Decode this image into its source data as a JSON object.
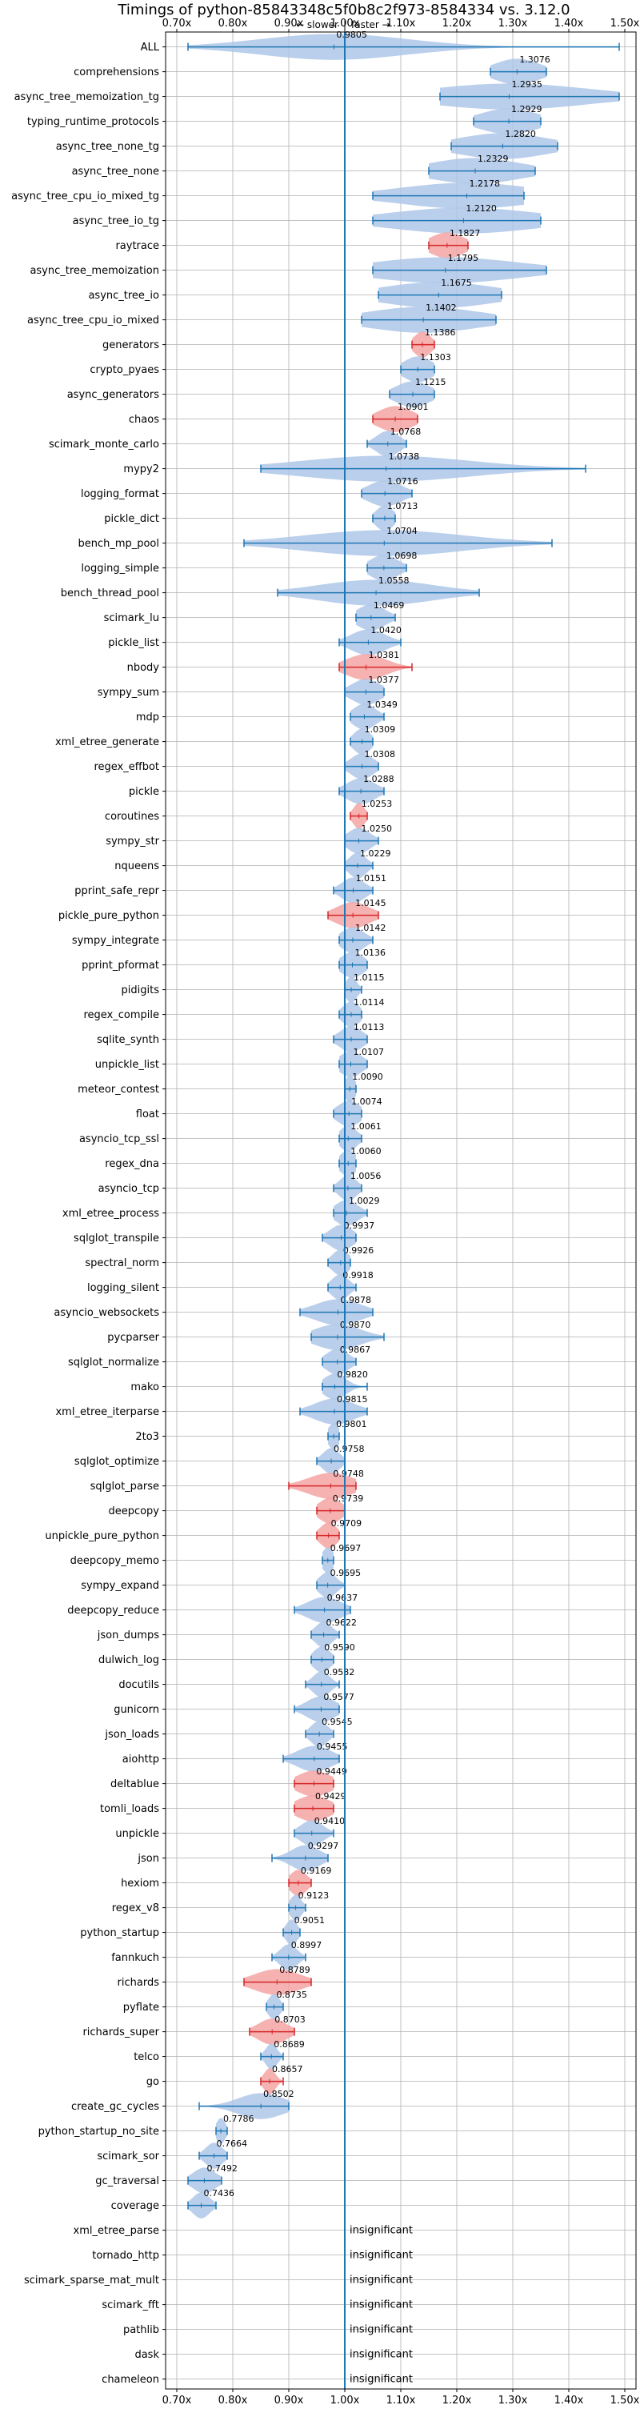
{
  "chart_data": {
    "type": "violin",
    "title": "Timings of python-85843348c5f0b8c2f973-8584334 vs. 3.12.0",
    "direction_labels": {
      "slower": "← slower",
      "separator": "|",
      "faster": "faster →"
    },
    "xlim": [
      0.68,
      1.52
    ],
    "xticks": [
      0.7,
      0.8,
      0.9,
      1.0,
      1.1,
      1.2,
      1.3,
      1.4,
      1.5
    ],
    "xtick_labels": [
      "0.70x",
      "0.80x",
      "0.90x",
      "1.00x",
      "1.10x",
      "1.20x",
      "1.30x",
      "1.40x",
      "1.50x"
    ],
    "grid": true,
    "reference_line": 1.0,
    "colors": {
      "normal": "#1f77b4",
      "normal_fill": "#aec7e8",
      "highlight_fill": "#f4a3a3",
      "highlight_line": "#d62728"
    },
    "benchmarks": [
      {
        "name": "ALL",
        "label": "0.9805",
        "center": 0.9805,
        "min": 0.72,
        "max": 1.49,
        "highlight": false,
        "spread": 0.13
      },
      {
        "name": "comprehensions",
        "label": "1.3076",
        "center": 1.3076,
        "min": 1.26,
        "max": 1.36,
        "highlight": false,
        "spread": 0.04
      },
      {
        "name": "async_tree_memoization_tg",
        "label": "1.2935",
        "center": 1.2935,
        "min": 1.17,
        "max": 1.49,
        "highlight": false,
        "spread": 0.14
      },
      {
        "name": "typing_runtime_protocols",
        "label": "1.2929",
        "center": 1.2929,
        "min": 1.23,
        "max": 1.35,
        "highlight": false,
        "spread": 0.05
      },
      {
        "name": "async_tree_none_tg",
        "label": "1.2820",
        "center": 1.282,
        "min": 1.19,
        "max": 1.38,
        "highlight": false,
        "spread": 0.08
      },
      {
        "name": "async_tree_none",
        "label": "1.2329",
        "center": 1.2329,
        "min": 1.15,
        "max": 1.34,
        "highlight": false,
        "spread": 0.08
      },
      {
        "name": "async_tree_cpu_io_mixed_tg",
        "label": "1.2178",
        "center": 1.2178,
        "min": 1.05,
        "max": 1.32,
        "highlight": false,
        "spread": 0.12
      },
      {
        "name": "async_tree_io_tg",
        "label": "1.2120",
        "center": 1.212,
        "min": 1.05,
        "max": 1.35,
        "highlight": false,
        "spread": 0.13
      },
      {
        "name": "raytrace",
        "label": "1.1827",
        "center": 1.1827,
        "min": 1.15,
        "max": 1.22,
        "highlight": true,
        "spread": 0.03
      },
      {
        "name": "async_tree_memoization",
        "label": "1.1795",
        "center": 1.1795,
        "min": 1.05,
        "max": 1.36,
        "highlight": false,
        "spread": 0.13
      },
      {
        "name": "async_tree_io",
        "label": "1.1675",
        "center": 1.1675,
        "min": 1.06,
        "max": 1.28,
        "highlight": false,
        "spread": 0.1
      },
      {
        "name": "async_tree_cpu_io_mixed",
        "label": "1.1402",
        "center": 1.1402,
        "min": 1.03,
        "max": 1.27,
        "highlight": false,
        "spread": 0.1
      },
      {
        "name": "generators",
        "label": "1.1386",
        "center": 1.1386,
        "min": 1.12,
        "max": 1.16,
        "highlight": true,
        "spread": 0.015
      },
      {
        "name": "crypto_pyaes",
        "label": "1.1303",
        "center": 1.1303,
        "min": 1.1,
        "max": 1.16,
        "highlight": false,
        "spread": 0.025
      },
      {
        "name": "async_generators",
        "label": "1.1215",
        "center": 1.1215,
        "min": 1.08,
        "max": 1.16,
        "highlight": false,
        "spread": 0.03
      },
      {
        "name": "chaos",
        "label": "1.0901",
        "center": 1.0901,
        "min": 1.05,
        "max": 1.13,
        "highlight": true,
        "spread": 0.03
      },
      {
        "name": "scimark_monte_carlo",
        "label": "1.0768",
        "center": 1.0768,
        "min": 1.04,
        "max": 1.11,
        "highlight": false,
        "spread": 0.02
      },
      {
        "name": "mypy2",
        "label": "1.0738",
        "center": 1.0738,
        "min": 0.85,
        "max": 1.43,
        "highlight": false,
        "spread": 0.15
      },
      {
        "name": "logging_format",
        "label": "1.0716",
        "center": 1.0716,
        "min": 1.03,
        "max": 1.12,
        "highlight": false,
        "spread": 0.03
      },
      {
        "name": "pickle_dict",
        "label": "1.0713",
        "center": 1.0713,
        "min": 1.05,
        "max": 1.09,
        "highlight": false,
        "spread": 0.015
      },
      {
        "name": "bench_mp_pool",
        "label": "1.0704",
        "center": 1.0704,
        "min": 0.82,
        "max": 1.37,
        "highlight": false,
        "spread": 0.14
      },
      {
        "name": "logging_simple",
        "label": "1.0698",
        "center": 1.0698,
        "min": 1.04,
        "max": 1.11,
        "highlight": false,
        "spread": 0.025
      },
      {
        "name": "bench_thread_pool",
        "label": "1.0558",
        "center": 1.0558,
        "min": 0.88,
        "max": 1.24,
        "highlight": false,
        "spread": 0.1
      },
      {
        "name": "scimark_lu",
        "label": "1.0469",
        "center": 1.0469,
        "min": 1.02,
        "max": 1.09,
        "highlight": false,
        "spread": 0.025
      },
      {
        "name": "pickle_list",
        "label": "1.0420",
        "center": 1.042,
        "min": 0.99,
        "max": 1.1,
        "highlight": false,
        "spread": 0.03
      },
      {
        "name": "nbody",
        "label": "1.0381",
        "center": 1.0381,
        "min": 0.99,
        "max": 1.12,
        "highlight": true,
        "spread": 0.035
      },
      {
        "name": "sympy_sum",
        "label": "1.0377",
        "center": 1.0377,
        "min": 1.0,
        "max": 1.07,
        "highlight": false,
        "spread": 0.025
      },
      {
        "name": "mdp",
        "label": "1.0349",
        "center": 1.0349,
        "min": 1.01,
        "max": 1.07,
        "highlight": false,
        "spread": 0.02
      },
      {
        "name": "xml_etree_generate",
        "label": "1.0309",
        "center": 1.0309,
        "min": 1.01,
        "max": 1.05,
        "highlight": false,
        "spread": 0.015
      },
      {
        "name": "regex_effbot",
        "label": "1.0308",
        "center": 1.0308,
        "min": 1.0,
        "max": 1.06,
        "highlight": false,
        "spread": 0.02
      },
      {
        "name": "pickle",
        "label": "1.0288",
        "center": 1.0288,
        "min": 0.99,
        "max": 1.07,
        "highlight": false,
        "spread": 0.025
      },
      {
        "name": "coroutines",
        "label": "1.0253",
        "center": 1.0253,
        "min": 1.01,
        "max": 1.04,
        "highlight": true,
        "spread": 0.01
      },
      {
        "name": "sympy_str",
        "label": "1.0250",
        "center": 1.025,
        "min": 1.0,
        "max": 1.06,
        "highlight": false,
        "spread": 0.02
      },
      {
        "name": "nqueens",
        "label": "1.0229",
        "center": 1.0229,
        "min": 1.0,
        "max": 1.05,
        "highlight": false,
        "spread": 0.015
      },
      {
        "name": "pprint_safe_repr",
        "label": "1.0151",
        "center": 1.0151,
        "min": 0.98,
        "max": 1.05,
        "highlight": false,
        "spread": 0.02
      },
      {
        "name": "pickle_pure_python",
        "label": "1.0145",
        "center": 1.0145,
        "min": 0.97,
        "max": 1.06,
        "highlight": true,
        "spread": 0.03
      },
      {
        "name": "sympy_integrate",
        "label": "1.0142",
        "center": 1.0142,
        "min": 0.99,
        "max": 1.05,
        "highlight": false,
        "spread": 0.02
      },
      {
        "name": "pprint_pformat",
        "label": "1.0136",
        "center": 1.0136,
        "min": 0.99,
        "max": 1.04,
        "highlight": false,
        "spread": 0.02
      },
      {
        "name": "pidigits",
        "label": "1.0115",
        "center": 1.0115,
        "min": 1.0,
        "max": 1.03,
        "highlight": false,
        "spread": 0.01
      },
      {
        "name": "regex_compile",
        "label": "1.0114",
        "center": 1.0114,
        "min": 0.99,
        "max": 1.03,
        "highlight": false,
        "spread": 0.015
      },
      {
        "name": "sqlite_synth",
        "label": "1.0113",
        "center": 1.0113,
        "min": 0.98,
        "max": 1.04,
        "highlight": false,
        "spread": 0.02
      },
      {
        "name": "unpickle_list",
        "label": "1.0107",
        "center": 1.0107,
        "min": 0.99,
        "max": 1.04,
        "highlight": false,
        "spread": 0.02
      },
      {
        "name": "meteor_contest",
        "label": "1.0090",
        "center": 1.009,
        "min": 1.0,
        "max": 1.02,
        "highlight": false,
        "spread": 0.01
      },
      {
        "name": "float",
        "label": "1.0074",
        "center": 1.0074,
        "min": 0.98,
        "max": 1.03,
        "highlight": false,
        "spread": 0.02
      },
      {
        "name": "asyncio_tcp_ssl",
        "label": "1.0061",
        "center": 1.0061,
        "min": 0.99,
        "max": 1.03,
        "highlight": false,
        "spread": 0.015
      },
      {
        "name": "regex_dna",
        "label": "1.0060",
        "center": 1.006,
        "min": 0.99,
        "max": 1.02,
        "highlight": false,
        "spread": 0.015
      },
      {
        "name": "asyncio_tcp",
        "label": "1.0056",
        "center": 1.0056,
        "min": 0.98,
        "max": 1.03,
        "highlight": false,
        "spread": 0.015
      },
      {
        "name": "xml_etree_process",
        "label": "1.0029",
        "center": 1.0029,
        "min": 0.98,
        "max": 1.04,
        "highlight": false,
        "spread": 0.02
      },
      {
        "name": "sqlglot_transpile",
        "label": "0.9937",
        "center": 0.9937,
        "min": 0.96,
        "max": 1.02,
        "highlight": false,
        "spread": 0.02
      },
      {
        "name": "spectral_norm",
        "label": "0.9926",
        "center": 0.9926,
        "min": 0.97,
        "max": 1.01,
        "highlight": false,
        "spread": 0.015
      },
      {
        "name": "logging_silent",
        "label": "0.9918",
        "center": 0.9918,
        "min": 0.97,
        "max": 1.02,
        "highlight": false,
        "spread": 0.015
      },
      {
        "name": "asyncio_websockets",
        "label": "0.9878",
        "center": 0.9878,
        "min": 0.92,
        "max": 1.05,
        "highlight": false,
        "spread": 0.04
      },
      {
        "name": "pycparser",
        "label": "0.9870",
        "center": 0.987,
        "min": 0.94,
        "max": 1.07,
        "highlight": false,
        "spread": 0.04
      },
      {
        "name": "sqlglot_normalize",
        "label": "0.9867",
        "center": 0.9867,
        "min": 0.96,
        "max": 1.02,
        "highlight": false,
        "spread": 0.02
      },
      {
        "name": "mako",
        "label": "0.9820",
        "center": 0.982,
        "min": 0.96,
        "max": 1.04,
        "highlight": false,
        "spread": 0.02
      },
      {
        "name": "xml_etree_iterparse",
        "label": "0.9815",
        "center": 0.9815,
        "min": 0.92,
        "max": 1.04,
        "highlight": false,
        "spread": 0.035
      },
      {
        "name": "2to3",
        "label": "0.9801",
        "center": 0.9801,
        "min": 0.97,
        "max": 0.99,
        "highlight": false,
        "spread": 0.01
      },
      {
        "name": "sqlglot_optimize",
        "label": "0.9758",
        "center": 0.9758,
        "min": 0.95,
        "max": 1.0,
        "highlight": false,
        "spread": 0.015
      },
      {
        "name": "sqlglot_parse",
        "label": "0.9748",
        "center": 0.9748,
        "min": 0.9,
        "max": 1.02,
        "highlight": true,
        "spread": 0.04
      },
      {
        "name": "deepcopy",
        "label": "0.9739",
        "center": 0.9739,
        "min": 0.95,
        "max": 1.0,
        "highlight": true,
        "spread": 0.02
      },
      {
        "name": "unpickle_pure_python",
        "label": "0.9709",
        "center": 0.9709,
        "min": 0.95,
        "max": 0.99,
        "highlight": true,
        "spread": 0.015
      },
      {
        "name": "deepcopy_memo",
        "label": "0.9697",
        "center": 0.9697,
        "min": 0.96,
        "max": 0.98,
        "highlight": false,
        "spread": 0.01
      },
      {
        "name": "sympy_expand",
        "label": "0.9695",
        "center": 0.9695,
        "min": 0.95,
        "max": 1.0,
        "highlight": false,
        "spread": 0.015
      },
      {
        "name": "deepcopy_reduce",
        "label": "0.9637",
        "center": 0.9637,
        "min": 0.91,
        "max": 1.01,
        "highlight": false,
        "spread": 0.03
      },
      {
        "name": "json_dumps",
        "label": "0.9622",
        "center": 0.9622,
        "min": 0.94,
        "max": 0.99,
        "highlight": false,
        "spread": 0.015
      },
      {
        "name": "dulwich_log",
        "label": "0.9590",
        "center": 0.959,
        "min": 0.94,
        "max": 0.98,
        "highlight": false,
        "spread": 0.015
      },
      {
        "name": "docutils",
        "label": "0.9582",
        "center": 0.9582,
        "min": 0.93,
        "max": 0.99,
        "highlight": false,
        "spread": 0.015
      },
      {
        "name": "gunicorn",
        "label": "0.9577",
        "center": 0.9577,
        "min": 0.91,
        "max": 0.99,
        "highlight": false,
        "spread": 0.025
      },
      {
        "name": "json_loads",
        "label": "0.9545",
        "center": 0.9545,
        "min": 0.93,
        "max": 0.98,
        "highlight": false,
        "spread": 0.015
      },
      {
        "name": "aiohttp",
        "label": "0.9455",
        "center": 0.9455,
        "min": 0.89,
        "max": 0.99,
        "highlight": false,
        "spread": 0.03
      },
      {
        "name": "deltablue",
        "label": "0.9449",
        "center": 0.9449,
        "min": 0.91,
        "max": 0.98,
        "highlight": true,
        "spread": 0.03
      },
      {
        "name": "tomli_loads",
        "label": "0.9429",
        "center": 0.9429,
        "min": 0.91,
        "max": 0.98,
        "highlight": true,
        "spread": 0.03
      },
      {
        "name": "unpickle",
        "label": "0.9410",
        "center": 0.941,
        "min": 0.91,
        "max": 0.98,
        "highlight": false,
        "spread": 0.02
      },
      {
        "name": "json",
        "label": "0.9297",
        "center": 0.9297,
        "min": 0.87,
        "max": 0.97,
        "highlight": false,
        "spread": 0.025
      },
      {
        "name": "hexiom",
        "label": "0.9169",
        "center": 0.9169,
        "min": 0.9,
        "max": 0.94,
        "highlight": true,
        "spread": 0.015
      },
      {
        "name": "regex_v8",
        "label": "0.9123",
        "center": 0.9123,
        "min": 0.9,
        "max": 0.93,
        "highlight": false,
        "spread": 0.01
      },
      {
        "name": "python_startup",
        "label": "0.9051",
        "center": 0.9051,
        "min": 0.89,
        "max": 0.92,
        "highlight": false,
        "spread": 0.01
      },
      {
        "name": "fannkuch",
        "label": "0.8997",
        "center": 0.8997,
        "min": 0.87,
        "max": 0.93,
        "highlight": false,
        "spread": 0.015
      },
      {
        "name": "richards",
        "label": "0.8789",
        "center": 0.8789,
        "min": 0.82,
        "max": 0.94,
        "highlight": true,
        "spread": 0.04
      },
      {
        "name": "pyflate",
        "label": "0.8735",
        "center": 0.8735,
        "min": 0.86,
        "max": 0.89,
        "highlight": false,
        "spread": 0.01
      },
      {
        "name": "richards_super",
        "label": "0.8703",
        "center": 0.8703,
        "min": 0.83,
        "max": 0.91,
        "highlight": true,
        "spread": 0.025
      },
      {
        "name": "telco",
        "label": "0.8689",
        "center": 0.8689,
        "min": 0.85,
        "max": 0.89,
        "highlight": false,
        "spread": 0.01
      },
      {
        "name": "go",
        "label": "0.8657",
        "center": 0.8657,
        "min": 0.85,
        "max": 0.89,
        "highlight": true,
        "spread": 0.01
      },
      {
        "name": "create_gc_cycles",
        "label": "0.8502",
        "center": 0.8502,
        "min": 0.74,
        "max": 0.9,
        "highlight": false,
        "spread": 0.04
      },
      {
        "name": "python_startup_no_site",
        "label": "0.7786",
        "center": 0.7786,
        "min": 0.77,
        "max": 0.79,
        "highlight": false,
        "spread": 0.008
      },
      {
        "name": "scimark_sor",
        "label": "0.7664",
        "center": 0.7664,
        "min": 0.74,
        "max": 0.79,
        "highlight": false,
        "spread": 0.015
      },
      {
        "name": "gc_traversal",
        "label": "0.7492",
        "center": 0.7492,
        "min": 0.72,
        "max": 0.78,
        "highlight": false,
        "spread": 0.02
      },
      {
        "name": "coverage",
        "label": "0.7436",
        "center": 0.7436,
        "min": 0.72,
        "max": 0.77,
        "highlight": false,
        "spread": 0.015
      },
      {
        "name": "xml_etree_parse",
        "label": "insignificant",
        "center": null
      },
      {
        "name": "tornado_http",
        "label": "insignificant",
        "center": null
      },
      {
        "name": "scimark_sparse_mat_mult",
        "label": "insignificant",
        "center": null
      },
      {
        "name": "scimark_fft",
        "label": "insignificant",
        "center": null
      },
      {
        "name": "pathlib",
        "label": "insignificant",
        "center": null
      },
      {
        "name": "dask",
        "label": "insignificant",
        "center": null
      },
      {
        "name": "chameleon",
        "label": "insignificant",
        "center": null
      }
    ]
  }
}
